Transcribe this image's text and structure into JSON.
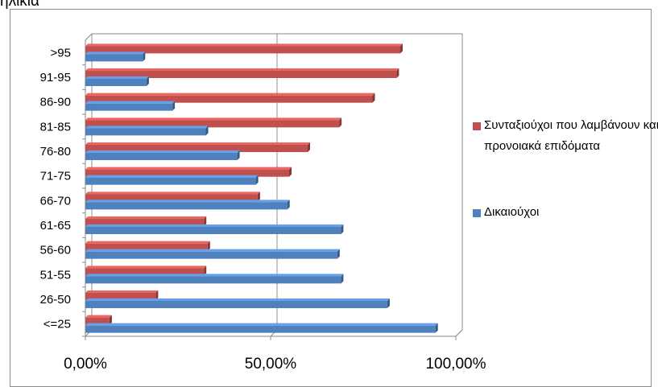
{
  "chart_data": {
    "type": "bar",
    "orientation": "horizontal",
    "title": "ηλικία",
    "categories": [
      "<=25",
      "26-50",
      "51-55",
      "56-60",
      "61-65",
      "66-70",
      "71-75",
      "76-80",
      "81-85",
      "86-90",
      "91-95",
      ">95"
    ],
    "series": [
      {
        "name": "Συνταξιούχοι που λαμβάνουν και προνοιακά επιδόματα",
        "color": "#c0504d",
        "values": [
          6.5,
          19.0,
          32.0,
          33.0,
          32.0,
          46.5,
          55.0,
          60.0,
          68.5,
          77.5,
          84.0,
          85.0
        ]
      },
      {
        "name": "Δικαιούχοι",
        "color": "#4f81bd",
        "values": [
          94.5,
          81.5,
          69.0,
          68.0,
          69.0,
          54.5,
          46.0,
          41.0,
          32.5,
          23.5,
          16.5,
          15.5
        ]
      }
    ],
    "xlim": [
      0,
      100
    ],
    "xticks": [
      "0,00%",
      "50,00%",
      "100,00%"
    ],
    "grid": true,
    "legend_position": "right"
  }
}
